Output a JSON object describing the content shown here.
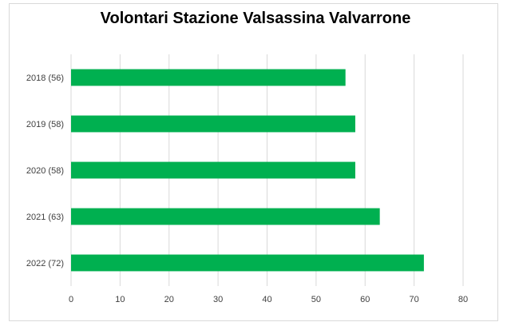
{
  "chart_data": {
    "type": "bar",
    "orientation": "horizontal",
    "title": "Volontari Stazione Valsassina Valvarrone",
    "categories": [
      "2018 (56)",
      "2019 (58)",
      "2020 (58)",
      "2021 (63)",
      "2022 (72)"
    ],
    "values": [
      56,
      58,
      58,
      63,
      72
    ],
    "xlim": [
      0,
      80
    ],
    "xticks": [
      "0",
      "10",
      "20",
      "30",
      "40",
      "50",
      "60",
      "70",
      "80"
    ],
    "xlabel": "",
    "ylabel": "",
    "grid": true,
    "legend": "none",
    "bar_color": "#00b050"
  }
}
